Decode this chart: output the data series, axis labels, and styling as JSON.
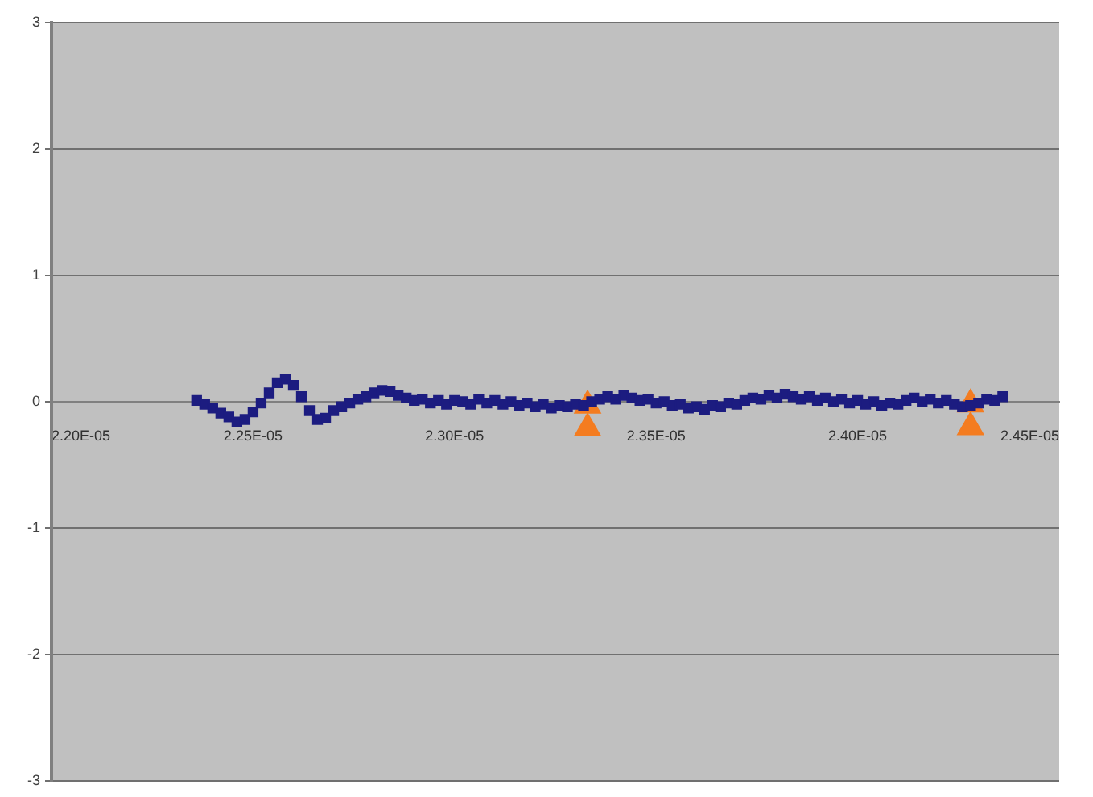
{
  "chart_data": {
    "type": "scatter",
    "grid": "y",
    "legend": false,
    "xlim": [
      2.2e-05,
      2.45e-05
    ],
    "xticks": [
      {
        "value": 2.2e-05,
        "label": "2.20E-05"
      },
      {
        "value": 2.25e-05,
        "label": "2.25E-05"
      },
      {
        "value": 2.3e-05,
        "label": "2.30E-05"
      },
      {
        "value": 2.35e-05,
        "label": "2.35E-05"
      },
      {
        "value": 2.4e-05,
        "label": "2.40E-05"
      },
      {
        "value": 2.45e-05,
        "label": "2.45E-05"
      }
    ],
    "ylim": [
      -3,
      3
    ],
    "yticks": [
      -3,
      -2,
      -1,
      0,
      1,
      2,
      3
    ],
    "series": [
      {
        "color": "#1c1c80",
        "marker": "square",
        "x": [
          2.236e-05,
          2.238e-05,
          2.24e-05,
          2.242e-05,
          2.244e-05,
          2.246e-05,
          2.248e-05,
          2.25e-05,
          2.252e-05,
          2.254e-05,
          2.256e-05,
          2.258e-05,
          2.26e-05,
          2.262e-05,
          2.264e-05,
          2.266e-05,
          2.268e-05,
          2.27e-05,
          2.272e-05,
          2.274e-05,
          2.276e-05,
          2.278e-05,
          2.28e-05,
          2.282e-05,
          2.284e-05,
          2.286e-05,
          2.288e-05,
          2.29e-05,
          2.292e-05,
          2.294e-05,
          2.296e-05,
          2.298e-05,
          2.3e-05,
          2.302e-05,
          2.304e-05,
          2.306e-05,
          2.308e-05,
          2.31e-05,
          2.312e-05,
          2.314e-05,
          2.316e-05,
          2.318e-05,
          2.32e-05,
          2.322e-05,
          2.324e-05,
          2.326e-05,
          2.328e-05,
          2.33e-05,
          2.332e-05,
          2.334e-05,
          2.336e-05,
          2.338e-05,
          2.34e-05,
          2.342e-05,
          2.344e-05,
          2.346e-05,
          2.348e-05,
          2.35e-05,
          2.352e-05,
          2.354e-05,
          2.356e-05,
          2.358e-05,
          2.36e-05,
          2.362e-05,
          2.364e-05,
          2.366e-05,
          2.368e-05,
          2.37e-05,
          2.372e-05,
          2.374e-05,
          2.376e-05,
          2.378e-05,
          2.38e-05,
          2.382e-05,
          2.384e-05,
          2.386e-05,
          2.388e-05,
          2.39e-05,
          2.392e-05,
          2.394e-05,
          2.396e-05,
          2.398e-05,
          2.4e-05,
          2.402e-05,
          2.404e-05,
          2.406e-05,
          2.408e-05,
          2.41e-05,
          2.412e-05,
          2.414e-05,
          2.416e-05,
          2.418e-05,
          2.42e-05,
          2.422e-05,
          2.424e-05,
          2.426e-05,
          2.428e-05,
          2.43e-05,
          2.432e-05,
          2.434e-05,
          2.436e-05
        ],
        "values": [
          0.01,
          -0.02,
          -0.05,
          -0.09,
          -0.12,
          -0.16,
          -0.14,
          -0.08,
          -0.01,
          0.07,
          0.15,
          0.18,
          0.13,
          0.04,
          -0.07,
          -0.14,
          -0.13,
          -0.07,
          -0.04,
          -0.01,
          0.02,
          0.04,
          0.07,
          0.09,
          0.08,
          0.05,
          0.03,
          0.01,
          0.02,
          -0.01,
          0.01,
          -0.02,
          0.01,
          0,
          -0.02,
          0.02,
          -0.01,
          0.01,
          -0.02,
          0,
          -0.03,
          -0.01,
          -0.04,
          -0.02,
          -0.05,
          -0.03,
          -0.04,
          -0.02,
          -0.03,
          0,
          0.02,
          0.04,
          0.02,
          0.05,
          0.03,
          0.01,
          0.02,
          -0.01,
          0,
          -0.03,
          -0.02,
          -0.05,
          -0.04,
          -0.06,
          -0.03,
          -0.04,
          -0.01,
          -0.02,
          0.01,
          0.03,
          0.02,
          0.05,
          0.03,
          0.06,
          0.04,
          0.02,
          0.04,
          0.01,
          0.03,
          0,
          0.02,
          -0.01,
          0.01,
          -0.02,
          0,
          -0.03,
          -0.01,
          -0.02,
          0.01,
          0.03,
          0,
          0.02,
          -0.01,
          0.01,
          -0.02,
          -0.04,
          -0.03,
          -0.01,
          0.02,
          0.01,
          0.04
        ]
      },
      {
        "color": "#f47c20",
        "marker": "triangle",
        "x": [
          2.333e-05,
          2.333e-05,
          2.428e-05,
          2.428e-05
        ],
        "values": [
          -0.03,
          -0.21,
          -0.02,
          -0.2
        ]
      }
    ]
  }
}
